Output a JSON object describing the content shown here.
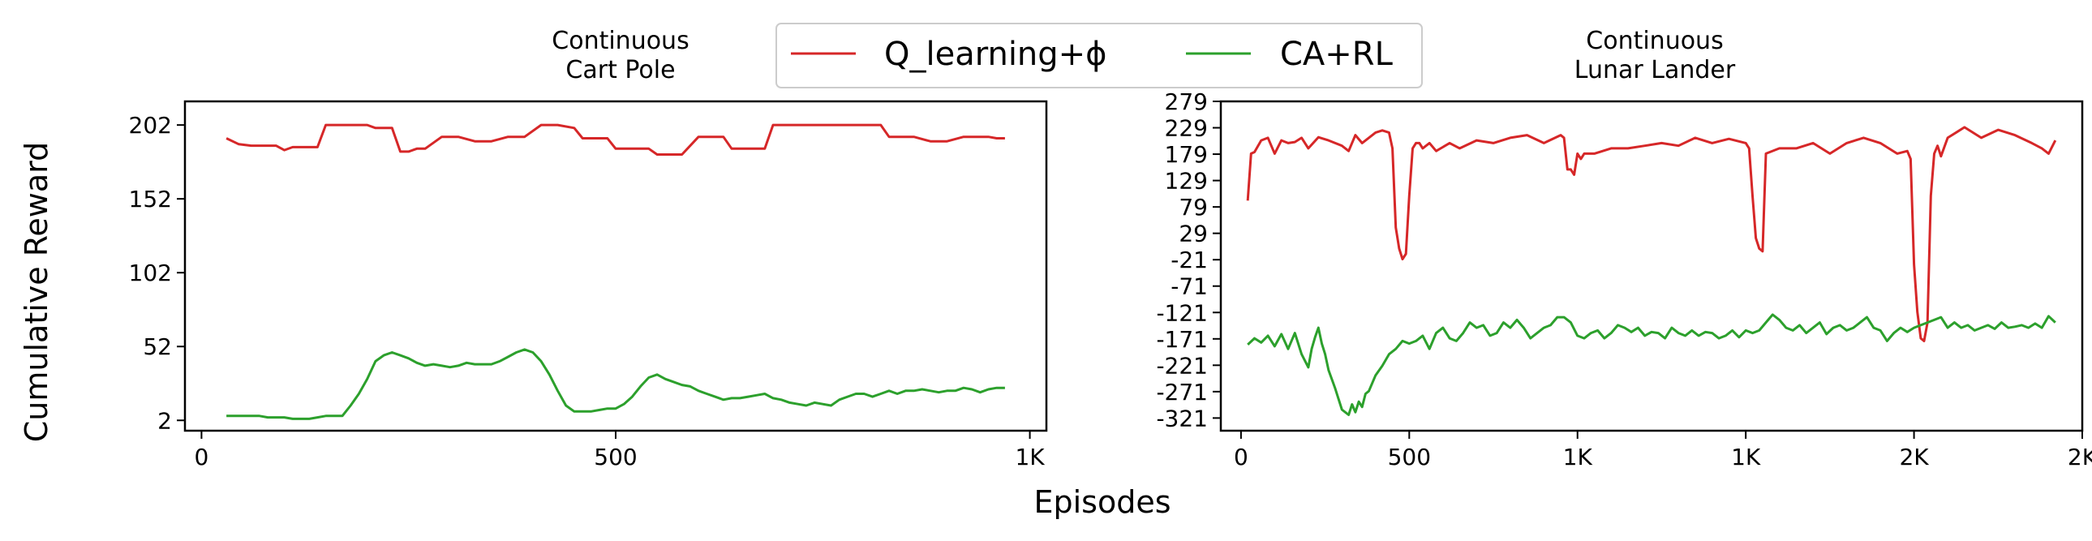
{
  "figure": {
    "ylabel": "Cumulative Reward",
    "xlabel": "Episodes",
    "legend": {
      "placement": "top-center",
      "entries": [
        {
          "label": "Q_learning+ϕ",
          "color": "#d62728"
        },
        {
          "label": "CA+RL",
          "color": "#2ca02c"
        }
      ]
    }
  },
  "chart_data": [
    {
      "type": "line",
      "title_lines": [
        "Continuous",
        "Cart Pole"
      ],
      "xlim": [
        -20,
        1020
      ],
      "ylim": [
        -5,
        218
      ],
      "xticks": [
        0,
        500,
        1000
      ],
      "xtick_labels": [
        "0",
        "500",
        "1K"
      ],
      "yticks": [
        2,
        52,
        102,
        152,
        202
      ],
      "ytick_labels": [
        "2",
        "52",
        "102",
        "152",
        "202"
      ],
      "grid": false,
      "series": [
        {
          "name": "Q_learning+ϕ",
          "color": "#d62728",
          "x": [
            30,
            45,
            60,
            75,
            90,
            100,
            110,
            125,
            140,
            150,
            160,
            170,
            180,
            190,
            200,
            210,
            230,
            240,
            250,
            260,
            270,
            290,
            300,
            310,
            330,
            350,
            370,
            390,
            410,
            430,
            450,
            460,
            470,
            490,
            500,
            510,
            525,
            540,
            550,
            560,
            580,
            600,
            630,
            640,
            660,
            680,
            690,
            700,
            710,
            730,
            740,
            760,
            780,
            800,
            820,
            830,
            840,
            850,
            860,
            880,
            900,
            920,
            950,
            960,
            970
          ],
          "values": [
            193,
            189,
            188,
            188,
            188,
            185,
            187,
            187,
            187,
            202,
            202,
            202,
            202,
            202,
            202,
            200,
            200,
            184,
            184,
            186,
            186,
            194,
            194,
            194,
            191,
            191,
            194,
            194,
            202,
            202,
            200,
            193,
            193,
            193,
            186,
            186,
            186,
            186,
            182,
            182,
            182,
            194,
            194,
            186,
            186,
            186,
            202,
            202,
            202,
            202,
            202,
            202,
            202,
            202,
            202,
            194,
            194,
            194,
            194,
            191,
            191,
            194,
            194,
            193,
            193
          ]
        },
        {
          "name": "CA+RL",
          "color": "#2ca02c",
          "x": [
            30,
            50,
            70,
            80,
            90,
            100,
            110,
            120,
            130,
            140,
            150,
            160,
            170,
            180,
            190,
            200,
            210,
            220,
            230,
            240,
            250,
            260,
            270,
            280,
            290,
            300,
            310,
            320,
            330,
            340,
            350,
            360,
            370,
            380,
            390,
            400,
            410,
            420,
            430,
            440,
            450,
            460,
            470,
            480,
            490,
            500,
            510,
            520,
            530,
            540,
            550,
            560,
            570,
            580,
            590,
            600,
            610,
            620,
            630,
            640,
            650,
            660,
            670,
            680,
            690,
            700,
            710,
            720,
            730,
            740,
            750,
            760,
            770,
            780,
            790,
            800,
            810,
            820,
            830,
            840,
            850,
            860,
            870,
            880,
            890,
            900,
            910,
            920,
            930,
            940,
            950,
            960,
            970
          ],
          "values": [
            5,
            5,
            5,
            4,
            4,
            4,
            3,
            3,
            3,
            4,
            5,
            5,
            5,
            12,
            20,
            30,
            42,
            46,
            48,
            46,
            44,
            41,
            39,
            40,
            39,
            38,
            39,
            41,
            40,
            40,
            40,
            42,
            45,
            48,
            50,
            48,
            42,
            33,
            22,
            12,
            8,
            8,
            8,
            9,
            10,
            10,
            13,
            18,
            25,
            31,
            33,
            30,
            28,
            26,
            25,
            22,
            20,
            18,
            16,
            17,
            17,
            18,
            19,
            20,
            17,
            16,
            14,
            13,
            12,
            14,
            13,
            12,
            16,
            18,
            20,
            20,
            18,
            20,
            22,
            20,
            22,
            22,
            23,
            22,
            21,
            22,
            22,
            24,
            23,
            21,
            23,
            24,
            24
          ]
        }
      ]
    },
    {
      "type": "line",
      "title_lines": [
        "Continuous",
        "Lunar Lander"
      ],
      "xlim": [
        -60,
        2500
      ],
      "ylim": [
        -345,
        279
      ],
      "xticks": [
        0,
        500,
        1000,
        1500,
        2000,
        2500
      ],
      "xtick_labels": [
        "0",
        "500",
        "1K",
        "1K",
        "2K",
        "2K"
      ],
      "yticks": [
        279,
        229,
        179,
        129,
        79,
        29,
        -21,
        -71,
        -121,
        -171,
        -221,
        -271,
        -321
      ],
      "ytick_labels": [
        "279",
        "229",
        "179",
        "129",
        "79",
        "29",
        "-21",
        "-71",
        "-121",
        "-171",
        "-221",
        "-271",
        "-321"
      ],
      "grid": false,
      "series": [
        {
          "name": "Q_learning+ϕ",
          "color": "#d62728",
          "x": [
            20,
            30,
            40,
            60,
            80,
            100,
            120,
            140,
            160,
            180,
            200,
            230,
            260,
            300,
            320,
            340,
            360,
            400,
            420,
            440,
            450,
            460,
            470,
            480,
            490,
            500,
            510,
            520,
            530,
            540,
            560,
            580,
            620,
            650,
            700,
            750,
            800,
            850,
            900,
            950,
            960,
            970,
            980,
            990,
            1000,
            1010,
            1020,
            1050,
            1100,
            1150,
            1200,
            1250,
            1300,
            1350,
            1400,
            1450,
            1500,
            1510,
            1520,
            1530,
            1540,
            1550,
            1560,
            1600,
            1650,
            1700,
            1750,
            1800,
            1850,
            1900,
            1950,
            1980,
            1990,
            2000,
            2010,
            2020,
            2030,
            2040,
            2050,
            2060,
            2070,
            2080,
            2100,
            2150,
            2200,
            2250,
            2300,
            2350,
            2380,
            2400,
            2420
          ],
          "values": [
            91,
            180,
            183,
            205,
            210,
            180,
            205,
            200,
            202,
            210,
            190,
            211,
            205,
            195,
            185,
            215,
            200,
            220,
            224,
            220,
            190,
            40,
            0,
            -20,
            -10,
            100,
            190,
            200,
            200,
            190,
            200,
            185,
            200,
            190,
            205,
            200,
            210,
            215,
            200,
            215,
            210,
            150,
            150,
            140,
            180,
            170,
            180,
            180,
            190,
            190,
            195,
            200,
            195,
            210,
            200,
            208,
            200,
            190,
            100,
            20,
            0,
            -5,
            180,
            190,
            190,
            200,
            180,
            200,
            210,
            200,
            180,
            185,
            170,
            -30,
            -120,
            -170,
            -175,
            -140,
            100,
            180,
            195,
            175,
            210,
            230,
            210,
            225,
            215,
            200,
            190,
            180,
            205
          ]
        },
        {
          "name": "CA+RL",
          "color": "#2ca02c",
          "x": [
            20,
            40,
            60,
            80,
            100,
            120,
            140,
            160,
            180,
            200,
            210,
            220,
            230,
            240,
            250,
            260,
            280,
            300,
            320,
            330,
            340,
            350,
            360,
            370,
            380,
            400,
            420,
            440,
            460,
            480,
            500,
            520,
            540,
            560,
            580,
            600,
            620,
            640,
            660,
            680,
            700,
            720,
            740,
            760,
            780,
            800,
            820,
            840,
            860,
            880,
            900,
            920,
            940,
            960,
            980,
            1000,
            1020,
            1040,
            1060,
            1080,
            1100,
            1120,
            1140,
            1160,
            1180,
            1200,
            1220,
            1240,
            1260,
            1280,
            1300,
            1320,
            1340,
            1360,
            1380,
            1400,
            1420,
            1440,
            1460,
            1480,
            1500,
            1520,
            1540,
            1560,
            1580,
            1600,
            1620,
            1640,
            1660,
            1680,
            1700,
            1720,
            1740,
            1760,
            1780,
            1800,
            1820,
            1840,
            1860,
            1880,
            1900,
            1920,
            1940,
            1960,
            1980,
            2000,
            2020,
            2040,
            2060,
            2080,
            2100,
            2120,
            2140,
            2160,
            2180,
            2200,
            2220,
            2240,
            2260,
            2280,
            2300,
            2320,
            2340,
            2360,
            2380,
            2400,
            2420
          ],
          "values": [
            -182,
            -170,
            -178,
            -165,
            -185,
            -162,
            -190,
            -160,
            -200,
            -225,
            -190,
            -168,
            -150,
            -180,
            -200,
            -230,
            -265,
            -305,
            -315,
            -295,
            -310,
            -290,
            -300,
            -275,
            -270,
            -240,
            -222,
            -200,
            -190,
            -175,
            -180,
            -175,
            -165,
            -190,
            -160,
            -150,
            -170,
            -175,
            -160,
            -140,
            -150,
            -145,
            -165,
            -160,
            -140,
            -150,
            -135,
            -150,
            -170,
            -160,
            -150,
            -145,
            -130,
            -130,
            -140,
            -165,
            -170,
            -160,
            -155,
            -170,
            -160,
            -145,
            -150,
            -158,
            -150,
            -165,
            -158,
            -160,
            -170,
            -150,
            -160,
            -165,
            -155,
            -165,
            -158,
            -160,
            -170,
            -165,
            -155,
            -168,
            -155,
            -160,
            -155,
            -140,
            -125,
            -135,
            -150,
            -155,
            -145,
            -160,
            -150,
            -140,
            -162,
            -150,
            -145,
            -155,
            -150,
            -140,
            -130,
            -150,
            -155,
            -175,
            -160,
            -150,
            -158,
            -150,
            -145,
            -140,
            -135,
            -130,
            -150,
            -140,
            -150,
            -145,
            -155,
            -150,
            -145,
            -152,
            -140,
            -150,
            -148,
            -145,
            -150,
            -142,
            -150,
            -128,
            -140
          ]
        }
      ]
    }
  ]
}
